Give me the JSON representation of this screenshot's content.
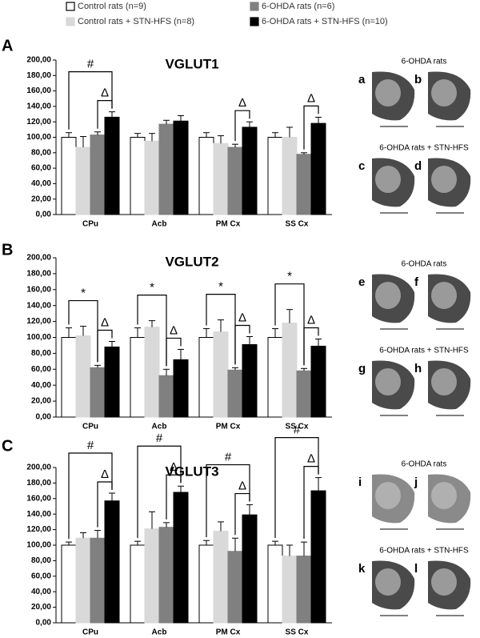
{
  "chart_data": [
    {
      "type": "bar",
      "panel_label": "A",
      "title": "VGLUT1",
      "categories": [
        "CPu",
        "Acb",
        "PM Cx",
        "SS Cx"
      ],
      "series": [
        {
          "name": "Control rats (n=9)",
          "color": "#ffffff",
          "values": [
            100,
            100,
            100,
            100
          ],
          "errors": [
            6,
            5,
            6,
            6
          ]
        },
        {
          "name": "Control rats + STN-HFS (n=8)",
          "color": "#d9d9d9",
          "values": [
            87,
            95,
            92,
            100
          ],
          "errors": [
            14,
            10,
            10,
            13
          ]
        },
        {
          "name": "6-OHDA rats (n=6)",
          "color": "#808080",
          "values": [
            103,
            117,
            87,
            78
          ],
          "errors": [
            4,
            5,
            4,
            2
          ]
        },
        {
          "name": "6-OHDA rats + STN-HFS (n=10)",
          "color": "#000000",
          "values": [
            126,
            121,
            113,
            118
          ],
          "errors": [
            7,
            7,
            7,
            8
          ]
        }
      ],
      "annotations": [
        {
          "text": "#",
          "category": 0,
          "series": [
            0,
            3
          ]
        },
        {
          "text": "Δ",
          "category": 0,
          "series": [
            2,
            3
          ]
        },
        {
          "text": "Δ",
          "category": 2,
          "series": [
            2,
            3
          ]
        },
        {
          "text": "Δ",
          "category": 3,
          "series": [
            2,
            3
          ]
        }
      ],
      "ylim": [
        0,
        200
      ],
      "yticks": [
        {
          "value": 0,
          "label": "0,00"
        },
        {
          "value": 20,
          "label": "20,00"
        },
        {
          "value": 40,
          "label": "40,00"
        },
        {
          "value": 60,
          "label": "60,00"
        },
        {
          "value": 80,
          "label": "80,00"
        },
        {
          "value": 100,
          "label": "100,00"
        },
        {
          "value": 120,
          "label": "120,00"
        },
        {
          "value": 140,
          "label": "140,00"
        },
        {
          "value": 160,
          "label": "160,00"
        },
        {
          "value": 180,
          "label": "180,00"
        },
        {
          "value": 200,
          "label": "200,00"
        }
      ]
    },
    {
      "type": "bar",
      "panel_label": "B",
      "title": "VGLUT2",
      "categories": [
        "CPu",
        "Acb",
        "PM Cx",
        "SS Cx"
      ],
      "series": [
        {
          "color": "#ffffff",
          "values": [
            100,
            100,
            100,
            100
          ],
          "errors": [
            12,
            12,
            11,
            11
          ]
        },
        {
          "color": "#d9d9d9",
          "values": [
            102,
            113,
            107,
            118
          ],
          "errors": [
            12,
            8,
            15,
            17
          ]
        },
        {
          "color": "#808080",
          "values": [
            62,
            52,
            59,
            58
          ],
          "errors": [
            3,
            8,
            3,
            3
          ]
        },
        {
          "color": "#000000",
          "values": [
            88,
            72,
            91,
            89
          ],
          "errors": [
            7,
            13,
            10,
            9
          ]
        }
      ],
      "annotations": [
        {
          "text": "*",
          "category": 0,
          "series": [
            0,
            2
          ]
        },
        {
          "text": "Δ",
          "category": 0,
          "series": [
            2,
            3
          ]
        },
        {
          "text": "*",
          "category": 1,
          "series": [
            0,
            2
          ]
        },
        {
          "text": "Δ",
          "category": 1,
          "series": [
            2,
            3
          ]
        },
        {
          "text": "*",
          "category": 2,
          "series": [
            0,
            2
          ]
        },
        {
          "text": "Δ",
          "category": 2,
          "series": [
            2,
            3
          ]
        },
        {
          "text": "*",
          "category": 3,
          "series": [
            0,
            2
          ]
        },
        {
          "text": "Δ",
          "category": 3,
          "series": [
            2,
            3
          ]
        }
      ],
      "ylim": [
        0,
        200
      ],
      "yticks": [
        {
          "value": 0,
          "label": "0,00"
        },
        {
          "value": 20,
          "label": "20,00"
        },
        {
          "value": 40,
          "label": "40,00"
        },
        {
          "value": 60,
          "label": "60,00"
        },
        {
          "value": 80,
          "label": "80,00"
        },
        {
          "value": 100,
          "label": "100,00"
        },
        {
          "value": 120,
          "label": "120,00"
        },
        {
          "value": 140,
          "label": "140,00"
        },
        {
          "value": 160,
          "label": "160,00"
        },
        {
          "value": 180,
          "label": "180,00"
        },
        {
          "value": 200,
          "label": "200,00"
        }
      ]
    },
    {
      "type": "bar",
      "panel_label": "C",
      "title": "VGLUT3",
      "categories": [
        "CPu",
        "Acb",
        "PM Cx",
        "SS Cx"
      ],
      "series": [
        {
          "color": "#ffffff",
          "values": [
            100,
            100,
            100,
            100
          ],
          "errors": [
            4,
            5,
            6,
            5
          ]
        },
        {
          "color": "#d9d9d9",
          "values": [
            109,
            121,
            118,
            86
          ],
          "errors": [
            7,
            22,
            12,
            14
          ]
        },
        {
          "color": "#808080",
          "values": [
            109,
            123,
            92,
            86
          ],
          "errors": [
            10,
            6,
            17,
            18
          ]
        },
        {
          "color": "#000000",
          "values": [
            157,
            168,
            139,
            170
          ],
          "errors": [
            10,
            8,
            13,
            17
          ]
        }
      ],
      "annotations": [
        {
          "text": "#",
          "category": 0,
          "series": [
            0,
            3
          ]
        },
        {
          "text": "Δ",
          "category": 0,
          "series": [
            2,
            3
          ]
        },
        {
          "text": "#",
          "category": 1,
          "series": [
            0,
            3
          ]
        },
        {
          "text": "Δ",
          "category": 1,
          "series": [
            2,
            3
          ]
        },
        {
          "text": "#",
          "category": 2,
          "series": [
            0,
            3
          ]
        },
        {
          "text": "Δ",
          "category": 2,
          "series": [
            2,
            3
          ]
        },
        {
          "text": "#",
          "category": 3,
          "series": [
            0,
            3
          ]
        },
        {
          "text": "Δ",
          "category": 3,
          "series": [
            2,
            3
          ]
        }
      ],
      "ylim": [
        0,
        200
      ],
      "yticks": [
        {
          "value": 0,
          "label": "0,00"
        },
        {
          "value": 20,
          "label": "20,00"
        },
        {
          "value": 40,
          "label": "40,00"
        },
        {
          "value": 60,
          "label": "60,00"
        },
        {
          "value": 80,
          "label": "80,00"
        },
        {
          "value": 100,
          "label": "100,00"
        },
        {
          "value": 120,
          "label": "120,00"
        },
        {
          "value": 140,
          "label": "140,00"
        },
        {
          "value": 160,
          "label": "160,00"
        },
        {
          "value": 180,
          "label": "180,00"
        },
        {
          "value": 200,
          "label": "200,00"
        }
      ]
    }
  ],
  "images": [
    {
      "caption_top": "6-OHDA rats",
      "caption_bottom": "6-OHDA rats + STN-HFS",
      "labels": [
        "a",
        "b",
        "c",
        "d"
      ]
    },
    {
      "caption_top": "6-OHDA rats",
      "caption_bottom": "6-OHDA rats + STN-HFS",
      "labels": [
        "e",
        "f",
        "g",
        "h"
      ]
    },
    {
      "caption_top": "6-OHDA rats",
      "caption_bottom": "6-OHDA rats + STN-HFS",
      "labels": [
        "i",
        "j",
        "k",
        "l"
      ]
    }
  ]
}
